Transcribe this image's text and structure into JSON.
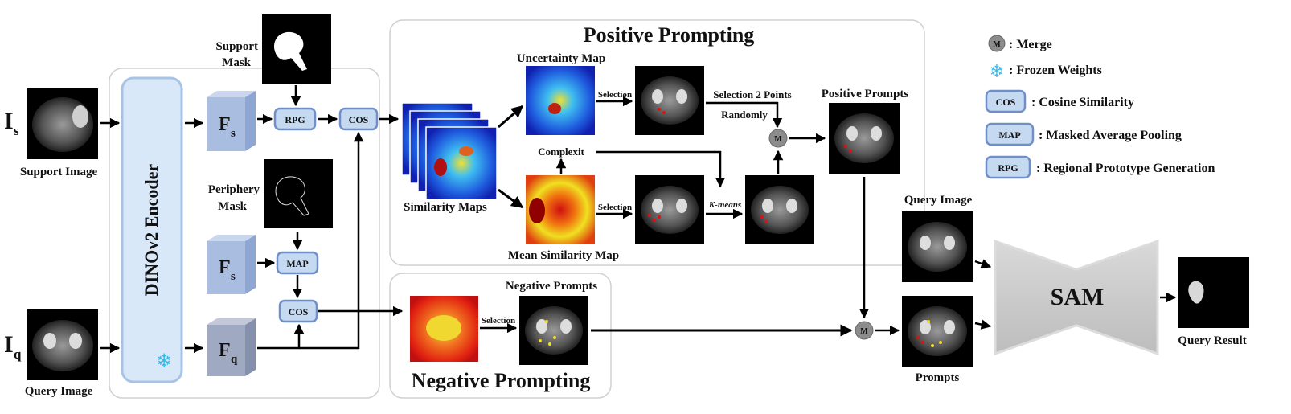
{
  "sections": {
    "positive_title": "Positive Prompting",
    "negative_title": "Negative Prompting"
  },
  "encoder": {
    "label": "DINOv2   Encoder"
  },
  "inputs": {
    "support_symbol": "I",
    "support_sub": "s",
    "support_caption": "Support Image",
    "query_symbol": "I",
    "query_sub": "q",
    "query_caption": "Query Image"
  },
  "features": {
    "fs_top": "F",
    "fs_top_sub": "s",
    "fs_mid": "F",
    "fs_mid_sub": "s",
    "fq": "F",
    "fq_sub": "q"
  },
  "masks": {
    "support_mask_line1": "Support",
    "support_mask_line2": "Mask",
    "periphery_line1": "Periphery",
    "periphery_line2": "Mask"
  },
  "ops": {
    "rpg": "RPG",
    "cos_top": "COS",
    "map": "MAP",
    "cos_bottom": "COS"
  },
  "positive": {
    "similarity_maps": "Similarity Maps",
    "uncertainty_map": "Uncertainty Map",
    "mean_similarity_map": "Mean Similarity Map",
    "complexit": "Complexit",
    "selection_top": "Selection",
    "selection_bottom": "Selection",
    "selection_2_points": "Selection 2 Points",
    "randomly": "Randomly",
    "kmeans": "K-means",
    "positive_prompts": "Positive Prompts"
  },
  "negative": {
    "selection": "Selection",
    "negative_prompts": "Negative Prompts"
  },
  "merge_symbol": "M",
  "output": {
    "query_image": "Query Image",
    "prompts": "Prompts",
    "sam": "SAM",
    "query_result": "Query Result"
  },
  "legend": {
    "merge": ": Merge",
    "frozen": ": Frozen Weights",
    "cos_key": "COS",
    "cos_desc": ": Cosine Similarity",
    "map_key": "MAP",
    "map_desc": ": Masked Average Pooling",
    "rpg_key": "RPG",
    "rpg_desc": ": Regional Prototype Generation"
  },
  "colors": {
    "op_fill": "#c5d9f1",
    "op_stroke": "#6f8fc9",
    "feature_front": "#a9bde0",
    "feature_side": "#8ea6d2",
    "fq_front": "#9fa9c2",
    "encoder_fill": "#d8e8f8",
    "frozen": "#39b6e8",
    "merge": "#8c8c8c",
    "sam": "#c8c8c8"
  }
}
